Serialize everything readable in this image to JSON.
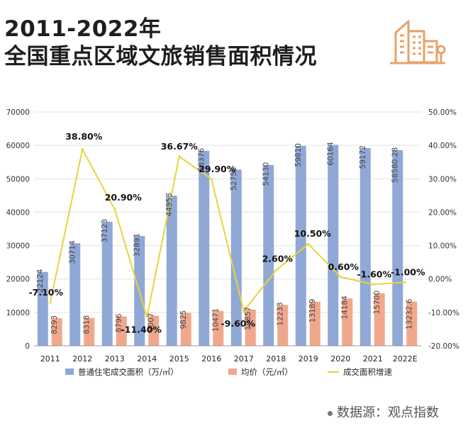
{
  "title": {
    "line1": "2011-2022年",
    "line2": "全国重点区域文旅销售面积情况"
  },
  "footer": {
    "source": "数据源：观点指数"
  },
  "colors": {
    "area_bar": "#8fa8d6",
    "price_bar": "#f0a88c",
    "growth_line": "#e8d43c",
    "icon": "#e8a16a"
  },
  "icon": "city-buildings-icon",
  "chart_data": {
    "type": "bar",
    "title": "",
    "xlabel": "",
    "ylabel": "",
    "categories": [
      "2011",
      "2012",
      "2013",
      "2014",
      "2015",
      "2016",
      "2017",
      "2018",
      "2019",
      "2020",
      "2021",
      "2022E"
    ],
    "ylim": [
      0,
      70000
    ],
    "y_ticks": [
      "0",
      "10000",
      "20000",
      "30000",
      "40000",
      "50000",
      "60000",
      "70000"
    ],
    "y2lim": [
      -20,
      50
    ],
    "y2_ticks": [
      "-20.00%",
      "-10.00%",
      "0.00%",
      "10.00%",
      "20.00%",
      "30.00%",
      "40.00%",
      "50.00%"
    ],
    "grid": true,
    "legend_position": "bottom",
    "series": [
      {
        "name": "普通住宅成交面积（万/㎡）",
        "type": "bar",
        "axis": "left",
        "values": [
          22124,
          30714,
          37123,
          32891,
          44953,
          58376,
          52755,
          54130,
          59810,
          60164,
          59172,
          58580.28
        ],
        "labels": [
          "22124",
          "30714",
          "37123",
          "32891",
          "44953",
          "58376",
          "52755",
          "54130",
          "59810",
          "60164",
          "59172",
          "58580.28"
        ]
      },
      {
        "name": "均价（元/㎡）",
        "type": "bar",
        "axis": "left",
        "values": [
          8293,
          8318,
          8796,
          9007,
          9825,
          10471,
          10857,
          12233,
          13189,
          14184,
          15700,
          13232.6
        ],
        "labels": [
          "8293",
          "8318",
          "8796",
          "9007",
          "9825",
          "10471",
          "10857",
          "12233",
          "13189",
          "14184",
          "15700",
          "13232.6"
        ]
      },
      {
        "name": "成交面积增速",
        "type": "line",
        "axis": "right",
        "values": [
          -7.1,
          38.8,
          20.9,
          -11.4,
          36.67,
          29.9,
          -9.6,
          2.6,
          10.5,
          0.6,
          -1.6,
          -1.0
        ],
        "labels": [
          "-7.10%",
          "38.80%",
          "20.90%",
          "-11.40%",
          "36.67%",
          "29.90%",
          "-9.60%",
          "2.60%",
          "10.50%",
          "0.60%",
          "-1.60%",
          "-1.00%"
        ]
      }
    ]
  }
}
